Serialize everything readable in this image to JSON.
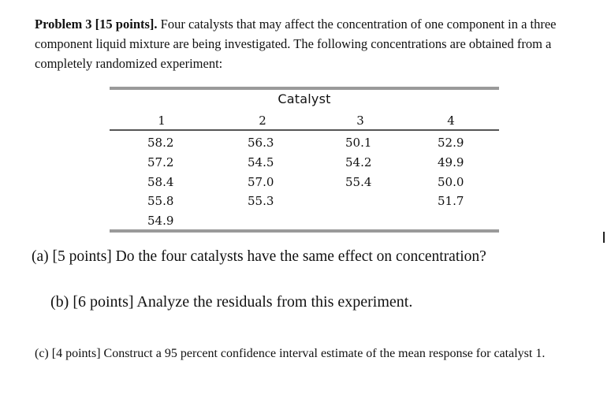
{
  "problem": {
    "heading": "Problem 3 [15 points].",
    "text": " Four catalysts that may affect the concentration of one component in a three component liquid mixture are being investigated. The following concentrations are obtained from a completely randomized experiment:"
  },
  "table": {
    "caption": "Catalyst",
    "headers": [
      "1",
      "2",
      "3",
      "4"
    ],
    "rows": [
      [
        "58.2",
        "56.3",
        "50.1",
        "52.9"
      ],
      [
        "57.2",
        "54.5",
        "54.2",
        "49.9"
      ],
      [
        "58.4",
        "57.0",
        "55.4",
        "50.0"
      ],
      [
        "55.8",
        "55.3",
        "",
        "51.7"
      ],
      [
        "54.9",
        "",
        "",
        ""
      ]
    ]
  },
  "questions": {
    "a": "(a) [5 points] Do the four catalysts have the same effect on concentration?",
    "b": "(b) [6 points] Analyze the residuals from this experiment.",
    "c": "(c) [4 points] Construct a 95 percent confidence interval estimate of the mean response for catalyst 1."
  }
}
